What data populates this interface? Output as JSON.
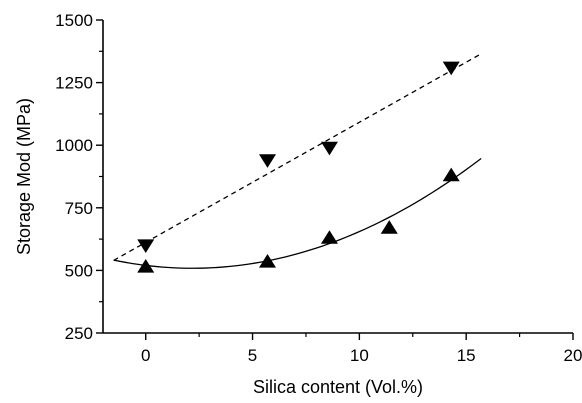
{
  "chart_data": {
    "type": "scatter",
    "xlabel": "Silica content (Vol.%)",
    "ylabel": "Storage Mod (MPa)",
    "xlim": [
      -2,
      20
    ],
    "ylim": [
      250,
      1500
    ],
    "xticks": [
      0,
      5,
      10,
      15,
      20
    ],
    "yticks": [
      250,
      500,
      750,
      1000,
      1250,
      1500
    ],
    "xtick_labels": [
      "0",
      "5",
      "10",
      "15",
      "20"
    ],
    "ytick_labels": [
      "250",
      "500",
      "750",
      "1000",
      "1250",
      "1500"
    ],
    "minor_xtick_step": 2.5,
    "minor_ytick_step": 125,
    "grid": false,
    "series": [
      {
        "marker": "triangle-down",
        "color": "#000000",
        "x": [
          0,
          5.7,
          8.6,
          14.3
        ],
        "y": [
          600,
          940,
          990,
          1310
        ],
        "fit": {
          "style": "dashed",
          "x_range": [
            -1.5,
            15.7
          ],
          "y_range": [
            540,
            1365
          ]
        }
      },
      {
        "marker": "triangle-up",
        "color": "#000000",
        "x": [
          0,
          5.7,
          8.6,
          11.4,
          14.3
        ],
        "y": [
          515,
          535,
          630,
          670,
          880
        ],
        "fit": {
          "style": "solid",
          "x_range": [
            -1.5,
            15.7
          ],
          "coefficients": [
            520,
            -10.5,
            2.4
          ]
        }
      }
    ]
  }
}
